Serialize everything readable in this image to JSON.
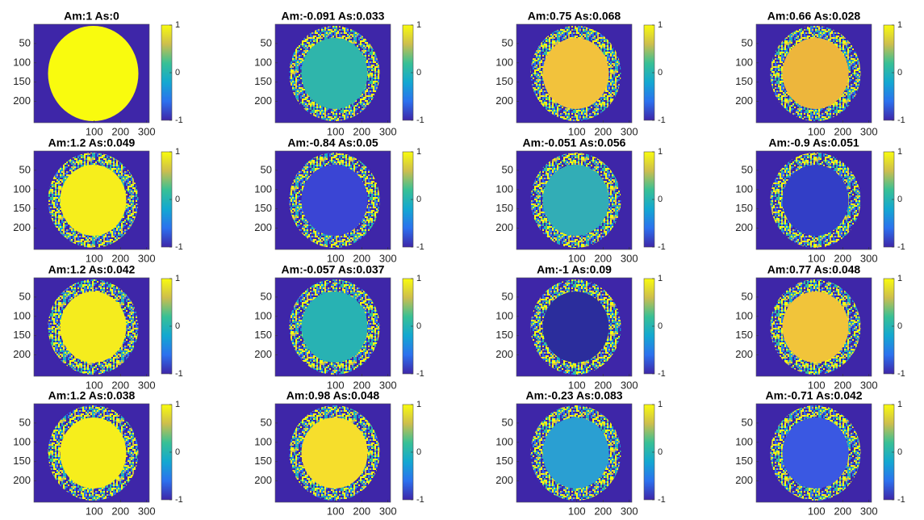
{
  "chart_data": [
    {
      "type": "image",
      "title": "Am:1  As:0",
      "color": "#f9fb0e",
      "ring": false,
      "xlim": [
        -130,
        310
      ],
      "ylim": [
        0,
        255
      ],
      "xticks": [
        100,
        200,
        300
      ],
      "yticks": [
        50,
        100,
        150,
        200
      ],
      "clim": [
        -1,
        1
      ],
      "cticks": [
        1,
        0,
        -1
      ],
      "colormap": [
        "#3e26a8",
        "#2c71ee",
        "#13a8d1",
        "#38c095",
        "#cdbe4d",
        "#f9fb0e"
      ]
    },
    {
      "type": "image",
      "title": "Am:-0.091  As:0.033",
      "color": "#2fb5ab",
      "ring": true,
      "xlim": [
        -130,
        310
      ],
      "ylim": [
        0,
        255
      ],
      "xticks": [
        100,
        200,
        300
      ],
      "yticks": [
        50,
        100,
        150,
        200
      ],
      "clim": [
        -1,
        1
      ],
      "cticks": [
        1,
        0,
        -1
      ],
      "colormap": [
        "#3e26a8",
        "#2c71ee",
        "#13a8d1",
        "#38c095",
        "#cdbe4d",
        "#f9fb0e"
      ]
    },
    {
      "type": "image",
      "title": "Am:0.75  As:0.068",
      "color": "#f2c23c",
      "ring": true,
      "xlim": [
        -130,
        310
      ],
      "ylim": [
        0,
        255
      ],
      "xticks": [
        100,
        200,
        300
      ],
      "yticks": [
        50,
        100,
        150,
        200
      ],
      "clim": [
        -1,
        1
      ],
      "cticks": [
        1,
        0,
        -1
      ],
      "colormap": [
        "#3e26a8",
        "#2c71ee",
        "#13a8d1",
        "#38c095",
        "#cdbe4d",
        "#f9fb0e"
      ]
    },
    {
      "type": "image",
      "title": "Am:0.66  As:0.028",
      "color": "#edb63c",
      "ring": true,
      "xlim": [
        -130,
        310
      ],
      "ylim": [
        0,
        255
      ],
      "xticks": [
        100,
        200,
        300
      ],
      "yticks": [
        50,
        100,
        150,
        200
      ],
      "clim": [
        -1,
        1
      ],
      "cticks": [
        1,
        0,
        -1
      ],
      "colormap": [
        "#3e26a8",
        "#2c71ee",
        "#13a8d1",
        "#38c095",
        "#cdbe4d",
        "#f9fb0e"
      ]
    },
    {
      "type": "image",
      "title": "Am:1.2  As:0.049",
      "color": "#f6ee1c",
      "ring": true,
      "xlim": [
        -130,
        310
      ],
      "ylim": [
        0,
        255
      ],
      "xticks": [
        100,
        200,
        300
      ],
      "yticks": [
        50,
        100,
        150,
        200
      ],
      "clim": [
        -1,
        1
      ],
      "cticks": [
        1,
        0,
        -1
      ],
      "colormap": [
        "#3e26a8",
        "#2c71ee",
        "#13a8d1",
        "#38c095",
        "#cdbe4d",
        "#f9fb0e"
      ]
    },
    {
      "type": "image",
      "title": "Am:-0.84  As:0.05",
      "color": "#3a45d4",
      "ring": true,
      "xlim": [
        -130,
        310
      ],
      "ylim": [
        0,
        255
      ],
      "xticks": [
        100,
        200,
        300
      ],
      "yticks": [
        50,
        100,
        150,
        200
      ],
      "clim": [
        -1,
        1
      ],
      "cticks": [
        1,
        0,
        -1
      ],
      "colormap": [
        "#3e26a8",
        "#2c71ee",
        "#13a8d1",
        "#38c095",
        "#cdbe4d",
        "#f9fb0e"
      ]
    },
    {
      "type": "image",
      "title": "Am:-0.051  As:0.056",
      "color": "#32adb6",
      "ring": true,
      "xlim": [
        -130,
        310
      ],
      "ylim": [
        0,
        255
      ],
      "xticks": [
        100,
        200,
        300
      ],
      "yticks": [
        50,
        100,
        150,
        200
      ],
      "clim": [
        -1,
        1
      ],
      "cticks": [
        1,
        0,
        -1
      ],
      "colormap": [
        "#3e26a8",
        "#2c71ee",
        "#13a8d1",
        "#38c095",
        "#cdbe4d",
        "#f9fb0e"
      ]
    },
    {
      "type": "image",
      "title": "Am:-0.9  As:0.051",
      "color": "#323ec6",
      "ring": true,
      "xlim": [
        -130,
        310
      ],
      "ylim": [
        0,
        255
      ],
      "xticks": [
        100,
        200,
        300
      ],
      "yticks": [
        50,
        100,
        150,
        200
      ],
      "clim": [
        -1,
        1
      ],
      "cticks": [
        1,
        0,
        -1
      ],
      "colormap": [
        "#3e26a8",
        "#2c71ee",
        "#13a8d1",
        "#38c095",
        "#cdbe4d",
        "#f9fb0e"
      ]
    },
    {
      "type": "image",
      "title": "Am:1.2  As:0.042",
      "color": "#f5ec1e",
      "ring": true,
      "xlim": [
        -130,
        310
      ],
      "ylim": [
        0,
        255
      ],
      "xticks": [
        100,
        200,
        300
      ],
      "yticks": [
        50,
        100,
        150,
        200
      ],
      "clim": [
        -1,
        1
      ],
      "cticks": [
        1,
        0,
        -1
      ],
      "colormap": [
        "#3e26a8",
        "#2c71ee",
        "#13a8d1",
        "#38c095",
        "#cdbe4d",
        "#f9fb0e"
      ]
    },
    {
      "type": "image",
      "title": "Am:-0.057  As:0.037",
      "color": "#28b2b3",
      "ring": true,
      "xlim": [
        -130,
        310
      ],
      "ylim": [
        0,
        255
      ],
      "xticks": [
        100,
        200,
        300
      ],
      "yticks": [
        50,
        100,
        150,
        200
      ],
      "clim": [
        -1,
        1
      ],
      "cticks": [
        1,
        0,
        -1
      ],
      "colormap": [
        "#3e26a8",
        "#2c71ee",
        "#13a8d1",
        "#38c095",
        "#cdbe4d",
        "#f9fb0e"
      ]
    },
    {
      "type": "image",
      "title": "Am:-1  As:0.09",
      "color": "#2b2d9c",
      "ring": true,
      "xlim": [
        -130,
        310
      ],
      "ylim": [
        0,
        255
      ],
      "xticks": [
        100,
        200,
        300
      ],
      "yticks": [
        50,
        100,
        150,
        200
      ],
      "clim": [
        -1,
        1
      ],
      "cticks": [
        1,
        0,
        -1
      ],
      "colormap": [
        "#3e26a8",
        "#2c71ee",
        "#13a8d1",
        "#38c095",
        "#cdbe4d",
        "#f9fb0e"
      ]
    },
    {
      "type": "image",
      "title": "Am:0.77  As:0.048",
      "color": "#f1c43a",
      "ring": true,
      "xlim": [
        -130,
        310
      ],
      "ylim": [
        0,
        255
      ],
      "xticks": [
        100,
        200,
        300
      ],
      "yticks": [
        50,
        100,
        150,
        200
      ],
      "clim": [
        -1,
        1
      ],
      "cticks": [
        1,
        0,
        -1
      ],
      "colormap": [
        "#3e26a8",
        "#2c71ee",
        "#13a8d1",
        "#38c095",
        "#cdbe4d",
        "#f9fb0e"
      ]
    },
    {
      "type": "image",
      "title": "Am:1.2  As:0.038",
      "color": "#f6ee1c",
      "ring": true,
      "xlim": [
        -130,
        310
      ],
      "ylim": [
        0,
        255
      ],
      "xticks": [
        100,
        200,
        300
      ],
      "yticks": [
        50,
        100,
        150,
        200
      ],
      "clim": [
        -1,
        1
      ],
      "cticks": [
        1,
        0,
        -1
      ],
      "colormap": [
        "#3e26a8",
        "#2c71ee",
        "#13a8d1",
        "#38c095",
        "#cdbe4d",
        "#f9fb0e"
      ]
    },
    {
      "type": "image",
      "title": "Am:0.98  As:0.048",
      "color": "#f6de2c",
      "ring": true,
      "xlim": [
        -130,
        310
      ],
      "ylim": [
        0,
        255
      ],
      "xticks": [
        100,
        200,
        300
      ],
      "yticks": [
        50,
        100,
        150,
        200
      ],
      "clim": [
        -1,
        1
      ],
      "cticks": [
        1,
        0,
        -1
      ],
      "colormap": [
        "#3e26a8",
        "#2c71ee",
        "#13a8d1",
        "#38c095",
        "#cdbe4d",
        "#f9fb0e"
      ]
    },
    {
      "type": "image",
      "title": "Am:-0.23  As:0.083",
      "color": "#2a9fd2",
      "ring": true,
      "xlim": [
        -130,
        310
      ],
      "ylim": [
        0,
        255
      ],
      "xticks": [
        100,
        200,
        300
      ],
      "yticks": [
        50,
        100,
        150,
        200
      ],
      "clim": [
        -1,
        1
      ],
      "cticks": [
        1,
        0,
        -1
      ],
      "colormap": [
        "#3e26a8",
        "#2c71ee",
        "#13a8d1",
        "#38c095",
        "#cdbe4d",
        "#f9fb0e"
      ]
    },
    {
      "type": "image",
      "title": "Am:-0.71  As:0.042",
      "color": "#3a58e2",
      "ring": true,
      "xlim": [
        -130,
        310
      ],
      "ylim": [
        0,
        255
      ],
      "xticks": [
        100,
        200,
        300
      ],
      "yticks": [
        50,
        100,
        150,
        200
      ],
      "clim": [
        -1,
        1
      ],
      "cticks": [
        1,
        0,
        -1
      ],
      "colormap": [
        "#3e26a8",
        "#2c71ee",
        "#13a8d1",
        "#38c095",
        "#cdbe4d",
        "#f9fb0e"
      ]
    }
  ]
}
